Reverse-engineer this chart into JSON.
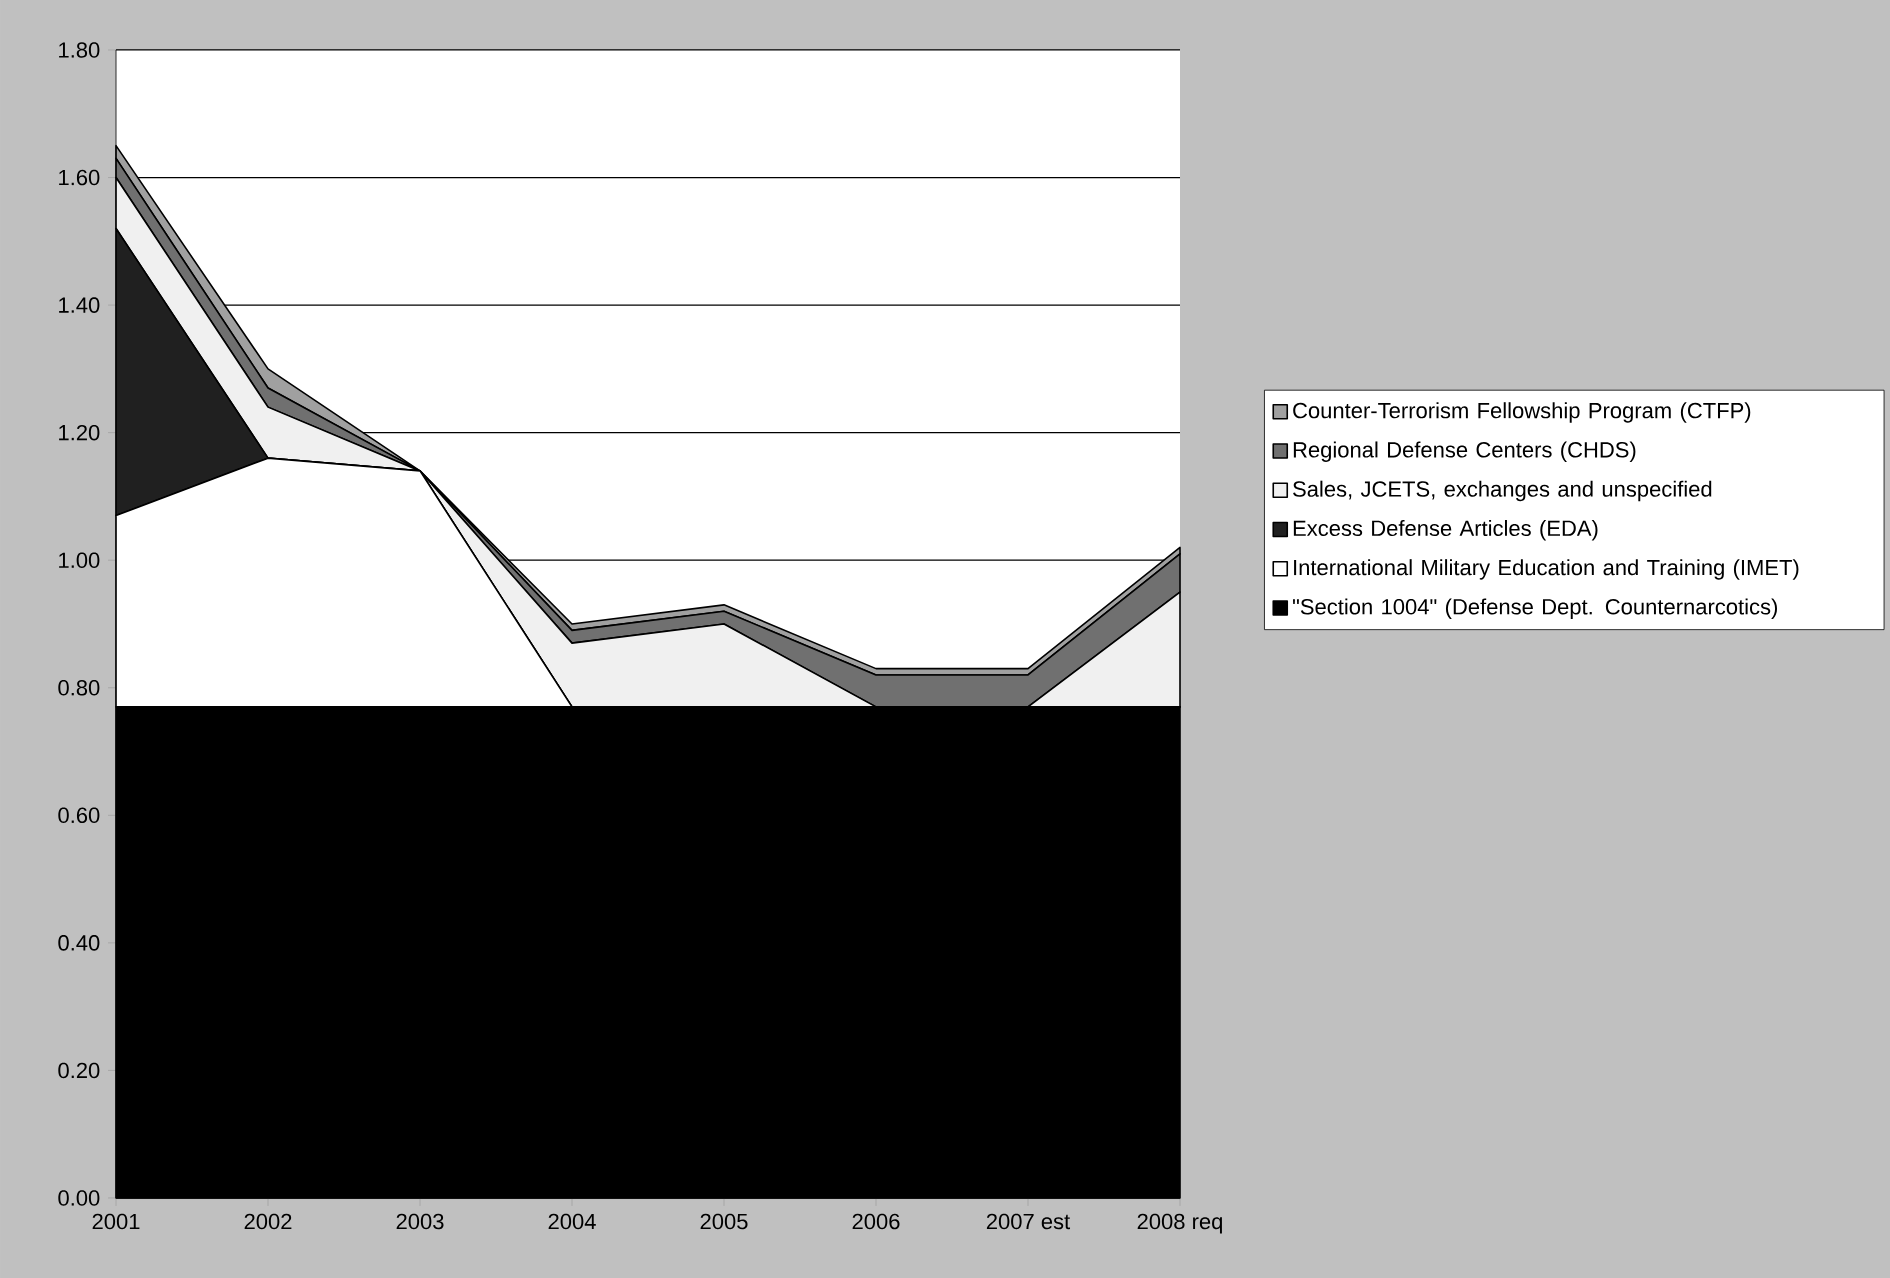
{
  "chart_data": {
    "type": "area",
    "stacked": true,
    "grid": "y",
    "legend": "right",
    "categories": [
      "2001",
      "2002",
      "2003",
      "2004",
      "2005",
      "2006",
      "2007 est",
      "2008 req"
    ],
    "ylim": [
      0,
      1.8
    ],
    "yticks": [
      {
        "value": 0,
        "label": "0.00"
      },
      {
        "value": 0.2,
        "label": "0.20"
      },
      {
        "value": 0.4,
        "label": "0.40"
      },
      {
        "value": 0.6,
        "label": "0.60"
      },
      {
        "value": 0.8,
        "label": "0.80"
      },
      {
        "value": 1.0,
        "label": "1.00"
      },
      {
        "value": 1.2,
        "label": "1.20"
      },
      {
        "value": 1.4,
        "label": "1.40"
      },
      {
        "value": 1.6,
        "label": "1.60"
      },
      {
        "value": 1.8,
        "label": "1.80"
      }
    ],
    "series": [
      {
        "name": "\"Section 1004\" (Defense Dept. Counternarcotics)",
        "color": "#000000",
        "values": [
          0.77,
          0.77,
          0.77,
          0.77,
          0.77,
          0.77,
          0.77,
          0.77
        ]
      },
      {
        "name": "International Military Education and Training (IMET)",
        "color": "#ffffff",
        "values": [
          0.3,
          0.39,
          0.37,
          0,
          0,
          0,
          0,
          0
        ]
      },
      {
        "name": "Excess Defense Articles (EDA)",
        "color": "#202020",
        "values": [
          0.45,
          0,
          0,
          0,
          0,
          0,
          0,
          0
        ]
      },
      {
        "name": "Sales, JCETS, exchanges and unspecified",
        "color": "#f0f0f0",
        "values": [
          0.08,
          0.08,
          0,
          0.1,
          0.13,
          0,
          0,
          0.18
        ]
      },
      {
        "name": "Regional Defense Centers (CHDS)",
        "color": "#707070",
        "values": [
          0.03,
          0.03,
          0,
          0.02,
          0.02,
          0.05,
          0.05,
          0.06
        ]
      },
      {
        "name": "Counter-Terrorism Fellowship Program (CTFP)",
        "color": "#a0a0a0",
        "values": [
          0.02,
          0.03,
          0,
          0.01,
          0.01,
          0.01,
          0.01,
          0.01
        ]
      }
    ]
  }
}
